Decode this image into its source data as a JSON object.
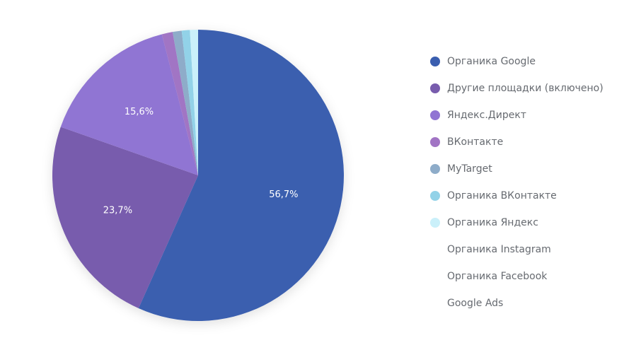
{
  "chart_data": {
    "type": "pie",
    "title": "",
    "slices": [
      {
        "name": "Органика Google",
        "value": 56.7,
        "label": "56,7%",
        "color": "#3a5eaf"
      },
      {
        "name": "Другие площадки (включено)",
        "value": 23.7,
        "label": "23,7%",
        "color": "#785cad"
      },
      {
        "name": "Яндекс.Директ",
        "value": 15.6,
        "label": "15,6%",
        "color": "#9074d3"
      },
      {
        "name": "ВКонтакте",
        "value": 1.2,
        "label": "",
        "color": "#a174c4"
      },
      {
        "name": "MyTarget",
        "value": 1.0,
        "label": "",
        "color": "#8eacc9"
      },
      {
        "name": "Органика ВКонтакте",
        "value": 0.9,
        "label": "",
        "color": "#92d2e8"
      },
      {
        "name": "Органика Яндекс",
        "value": 0.9,
        "label": "",
        "color": "#caf0fa"
      },
      {
        "name": "Органика Instagram",
        "value": 0,
        "label": "",
        "color": ""
      },
      {
        "name": "Органика Facebook",
        "value": 0,
        "label": "",
        "color": ""
      },
      {
        "name": "Google Ads",
        "value": 0,
        "label": "",
        "color": ""
      }
    ],
    "legend": {
      "placement": "right"
    }
  }
}
